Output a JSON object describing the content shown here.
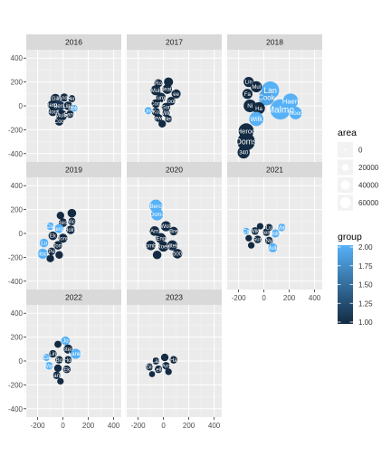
{
  "chart_data": {
    "type": "scatter",
    "facet_var": "year",
    "facets": [
      {
        "label": "2016",
        "points": [
          {
            "x": -60,
            "y": 60,
            "r": 38,
            "g": 1.0,
            "t": "Gill"
          },
          {
            "x": 10,
            "y": 70,
            "r": 32,
            "g": 1.0,
            "t": "Ande"
          },
          {
            "x": 70,
            "y": 60,
            "r": 28,
            "g": 1.0,
            "t": "Ferr"
          },
          {
            "x": -90,
            "y": 10,
            "r": 32,
            "g": 1.0,
            "t": "Berg"
          },
          {
            "x": -30,
            "y": 0,
            "r": 42,
            "g": 1.1,
            "t": "Pers"
          },
          {
            "x": 40,
            "y": 0,
            "r": 34,
            "g": 1.0,
            "t": "Lind"
          },
          {
            "x": 90,
            "y": -20,
            "r": 26,
            "g": 2.0,
            "t": "Holm"
          },
          {
            "x": -80,
            "y": -50,
            "r": 34,
            "g": 1.0,
            "t": "Nord"
          },
          {
            "x": -10,
            "y": -80,
            "r": 42,
            "g": 1.0,
            "t": "Mulle"
          },
          {
            "x": 55,
            "y": -70,
            "r": 30,
            "g": 1.0,
            "t": "Sand"
          },
          {
            "x": -30,
            "y": -130,
            "r": 34,
            "g": 1.0,
            "t": "Coo"
          }
        ]
      },
      {
        "label": "2017",
        "points": [
          {
            "x": -40,
            "y": 190,
            "r": 32,
            "g": 1.0,
            "t": "Ro"
          },
          {
            "x": 40,
            "y": 200,
            "r": 36,
            "g": 1.0,
            "t": ""
          },
          {
            "x": -60,
            "y": 130,
            "r": 40,
            "g": 1.0,
            "t": "Mull"
          },
          {
            "x": 30,
            "y": 140,
            "r": 38,
            "g": 1.0,
            "t": "Heath"
          },
          {
            "x": 100,
            "y": 100,
            "r": 36,
            "g": 1.0,
            "t": "ee"
          },
          {
            "x": -20,
            "y": 70,
            "r": 38,
            "g": 1.0,
            "t": "Turne"
          },
          {
            "x": 60,
            "y": 40,
            "r": 34,
            "g": 1.0,
            "t": "Brooke"
          },
          {
            "x": -60,
            "y": 20,
            "r": 34,
            "g": 1.0,
            "t": "Cool"
          },
          {
            "x": 20,
            "y": -10,
            "r": 34,
            "g": 1.0,
            "t": "Sor"
          },
          {
            "x": -120,
            "y": -40,
            "r": 28,
            "g": 2.0,
            "t": "Lina"
          },
          {
            "x": -60,
            "y": -50,
            "r": 32,
            "g": 1.0,
            "t": "Ku"
          },
          {
            "x": 20,
            "y": -60,
            "r": 30,
            "g": 1.0,
            "t": "Willia"
          },
          {
            "x": -40,
            "y": -100,
            "r": 32,
            "g": 1.0,
            "t": "Jewe"
          },
          {
            "x": 40,
            "y": -110,
            "r": 28,
            "g": 1.0,
            "t": "Hen"
          },
          {
            "x": -10,
            "y": -150,
            "r": 30,
            "g": 1.0,
            "t": ""
          }
        ]
      },
      {
        "label": "2018",
        "points": [
          {
            "x": -120,
            "y": 200,
            "r": 40,
            "g": 1.0,
            "t": "Lin"
          },
          {
            "x": -60,
            "y": 160,
            "r": 44,
            "g": 1.0,
            "t": "Mul"
          },
          {
            "x": 50,
            "y": 130,
            "r": 70,
            "g": 2.0,
            "t": "Lan"
          },
          {
            "x": -130,
            "y": 100,
            "r": 40,
            "g": 1.0,
            "t": "Fa"
          },
          {
            "x": 20,
            "y": 70,
            "r": 62,
            "g": 1.9,
            "t": "Cook"
          },
          {
            "x": -110,
            "y": 0,
            "r": 50,
            "g": 1.0,
            "t": "Ni"
          },
          {
            "x": 210,
            "y": 40,
            "r": 60,
            "g": 2.0,
            "t": "Haen"
          },
          {
            "x": -40,
            "y": -20,
            "r": 48,
            "g": 1.0,
            "t": "Ha"
          },
          {
            "x": 130,
            "y": -30,
            "r": 80,
            "g": 2.0,
            "t": "Malmo"
          },
          {
            "x": 250,
            "y": -60,
            "r": 50,
            "g": 2.0,
            "t": "Wood"
          },
          {
            "x": -60,
            "y": -110,
            "r": 56,
            "g": 2.0,
            "t": "Wilk"
          },
          {
            "x": -140,
            "y": -210,
            "r": 60,
            "g": 1.0,
            "t": "Heroo"
          },
          {
            "x": -140,
            "y": -300,
            "r": 70,
            "g": 1.0,
            "t": "Doms"
          },
          {
            "x": -160,
            "y": -390,
            "r": 48,
            "g": 1.0,
            "t": "340"
          }
        ]
      },
      {
        "label": "2019",
        "points": [
          {
            "x": -20,
            "y": 150,
            "r": 30,
            "g": 1.0,
            "t": ""
          },
          {
            "x": 70,
            "y": 170,
            "r": 34,
            "g": 1.0,
            "t": ""
          },
          {
            "x": 0,
            "y": 90,
            "r": 34,
            "g": 1.0,
            "t": "Rest"
          },
          {
            "x": 70,
            "y": 100,
            "r": 30,
            "g": 1.0,
            "t": "Wick"
          },
          {
            "x": -100,
            "y": 60,
            "r": 30,
            "g": 2.0,
            "t": "Cul"
          },
          {
            "x": -30,
            "y": 40,
            "r": 36,
            "g": 2.0,
            "t": "Bergs"
          },
          {
            "x": 60,
            "y": 30,
            "r": 34,
            "g": 1.0,
            "t": "Holm"
          },
          {
            "x": -80,
            "y": -20,
            "r": 34,
            "g": 1.0,
            "t": "Ek"
          },
          {
            "x": 0,
            "y": -40,
            "r": 36,
            "g": 1.0,
            "t": "Jons"
          },
          {
            "x": -150,
            "y": -80,
            "r": 34,
            "g": 2.0,
            "t": "Lu"
          },
          {
            "x": -40,
            "y": -100,
            "r": 34,
            "g": 1.0,
            "t": "Tom"
          },
          {
            "x": -160,
            "y": -170,
            "r": 40,
            "g": 2.0,
            "t": "Stock"
          },
          {
            "x": -90,
            "y": -150,
            "r": 30,
            "g": 1.0,
            "t": "Pe"
          },
          {
            "x": -30,
            "y": -180,
            "r": 30,
            "g": 1.0,
            "t": ""
          },
          {
            "x": -100,
            "y": -210,
            "r": 30,
            "g": 1.0,
            "t": ""
          }
        ]
      },
      {
        "label": "2020",
        "points": [
          {
            "x": -60,
            "y": 230,
            "r": 50,
            "g": 2.0,
            "t": "Bero"
          },
          {
            "x": -50,
            "y": 160,
            "r": 48,
            "g": 2.0,
            "t": "Doms"
          },
          {
            "x": 20,
            "y": 60,
            "r": 40,
            "g": 1.0,
            "t": "Wolt"
          },
          {
            "x": -70,
            "y": 20,
            "r": 38,
            "g": 1.0,
            "t": "Arn"
          },
          {
            "x": 80,
            "y": 20,
            "r": 34,
            "g": 1.0,
            "t": "Bre"
          },
          {
            "x": -20,
            "y": -40,
            "r": 40,
            "g": 1.0,
            "t": "Eng"
          },
          {
            "x": -100,
            "y": -100,
            "r": 38,
            "g": 1.0,
            "t": "Lomba"
          },
          {
            "x": 0,
            "y": -110,
            "r": 40,
            "g": 1.0,
            "t": "Roed"
          },
          {
            "x": 70,
            "y": -100,
            "r": 40,
            "g": 1.0,
            "t": "Vitek"
          },
          {
            "x": 110,
            "y": -170,
            "r": 38,
            "g": 1.0,
            "t": "500"
          },
          {
            "x": -50,
            "y": -180,
            "r": 34,
            "g": 1.0,
            "t": ""
          }
        ]
      },
      {
        "label": "2021",
        "points": [
          {
            "x": -30,
            "y": 60,
            "r": 26,
            "g": 1.0,
            "t": ""
          },
          {
            "x": 40,
            "y": 50,
            "r": 28,
            "g": 1.0,
            "t": "Lu"
          },
          {
            "x": 140,
            "y": 50,
            "r": 30,
            "g": 2.0,
            "t": "Mar"
          },
          {
            "x": -140,
            "y": 20,
            "r": 26,
            "g": 2.0,
            "t": "Ca"
          },
          {
            "x": -70,
            "y": 20,
            "r": 30,
            "g": 1.0,
            "t": "Wikl"
          },
          {
            "x": 20,
            "y": 10,
            "r": 30,
            "g": 1.0,
            "t": "Berg"
          },
          {
            "x": 90,
            "y": 0,
            "r": 32,
            "g": 2.0,
            "t": "Holm"
          },
          {
            "x": -120,
            "y": -40,
            "r": 26,
            "g": 1.0,
            "t": ""
          },
          {
            "x": -50,
            "y": -50,
            "r": 30,
            "g": 1.0,
            "t": "Sun"
          },
          {
            "x": 40,
            "y": -60,
            "r": 30,
            "g": 1.0,
            "t": "Ny"
          },
          {
            "x": -100,
            "y": -100,
            "r": 26,
            "g": 1.0,
            "t": ""
          },
          {
            "x": 70,
            "y": -120,
            "r": 36,
            "g": 2.0,
            "t": "Mulle"
          }
        ]
      },
      {
        "label": "2022",
        "points": [
          {
            "x": 20,
            "y": 170,
            "r": 34,
            "g": 2.0,
            "t": "Jo"
          },
          {
            "x": -40,
            "y": 140,
            "r": 28,
            "g": 1.0,
            "t": ""
          },
          {
            "x": 40,
            "y": 100,
            "r": 36,
            "g": 1.0,
            "t": "Sten"
          },
          {
            "x": -80,
            "y": 60,
            "r": 30,
            "g": 1.0,
            "t": "Lin"
          },
          {
            "x": 100,
            "y": 60,
            "r": 40,
            "g": 2.0,
            "t": "Laner"
          },
          {
            "x": -130,
            "y": 30,
            "r": 28,
            "g": 2.0,
            "t": "Ca"
          },
          {
            "x": -30,
            "y": 10,
            "r": 30,
            "g": 1.0,
            "t": "Bo"
          },
          {
            "x": 40,
            "y": 10,
            "r": 30,
            "g": 1.0,
            "t": "Hol"
          },
          {
            "x": -110,
            "y": -40,
            "r": 30,
            "g": 2.0,
            "t": "Way"
          },
          {
            "x": -40,
            "y": -60,
            "r": 30,
            "g": 1.0,
            "t": ""
          },
          {
            "x": 30,
            "y": -70,
            "r": 30,
            "g": 1.0,
            "t": "Ek"
          },
          {
            "x": -50,
            "y": -120,
            "r": 30,
            "g": 1.0,
            "t": "Jans"
          },
          {
            "x": -20,
            "y": -170,
            "r": 26,
            "g": 1.0,
            "t": ""
          }
        ]
      },
      {
        "label": "2023",
        "points": [
          {
            "x": 10,
            "y": 30,
            "r": 30,
            "g": 1.0,
            "t": ""
          },
          {
            "x": 80,
            "y": 10,
            "r": 30,
            "g": 1.0,
            "t": "Ha"
          },
          {
            "x": -60,
            "y": 0,
            "r": 28,
            "g": 1.0,
            "t": "Lar"
          },
          {
            "x": 20,
            "y": -40,
            "r": 30,
            "g": 1.0,
            "t": "Arn"
          },
          {
            "x": -110,
            "y": -50,
            "r": 28,
            "g": 1.0,
            "t": "Gil"
          },
          {
            "x": -40,
            "y": -70,
            "r": 30,
            "g": 1.0,
            "t": "Kelle"
          },
          {
            "x": 40,
            "y": -90,
            "r": 26,
            "g": 1.0,
            "t": ""
          },
          {
            "x": -90,
            "y": -110,
            "r": 24,
            "g": 1.0,
            "t": ""
          }
        ]
      }
    ],
    "xlim": [
      -290,
      460
    ],
    "ylim": [
      -470,
      470
    ],
    "x_ticks": [
      -200,
      -100,
      0,
      100,
      200,
      300,
      400
    ],
    "x_tick_labels": [
      "-200",
      "",
      "0",
      "",
      "200",
      "",
      "400"
    ],
    "y_ticks": [
      -400,
      -200,
      0,
      200,
      400
    ],
    "y_tick_labels": [
      "-400",
      "-200",
      "0",
      "200",
      "400"
    ],
    "legend_area": {
      "title": "area",
      "labels": [
        "0",
        "20000",
        "40000",
        "60000"
      ]
    },
    "legend_group": {
      "title": "group",
      "labels": [
        "2.00",
        "1.75",
        "1.50",
        "1.25",
        "1.00"
      ],
      "range": [
        1.0,
        2.0
      ],
      "low_color": "#132B43",
      "high_color": "#56B1F7"
    },
    "colors": {
      "panel_bg": "#EBEBEB",
      "strip_bg": "#D9D9D9",
      "grid_major": "#FFFFFF",
      "tick_text": "#4D4D4D",
      "label_text": "#FFFFFF"
    }
  }
}
